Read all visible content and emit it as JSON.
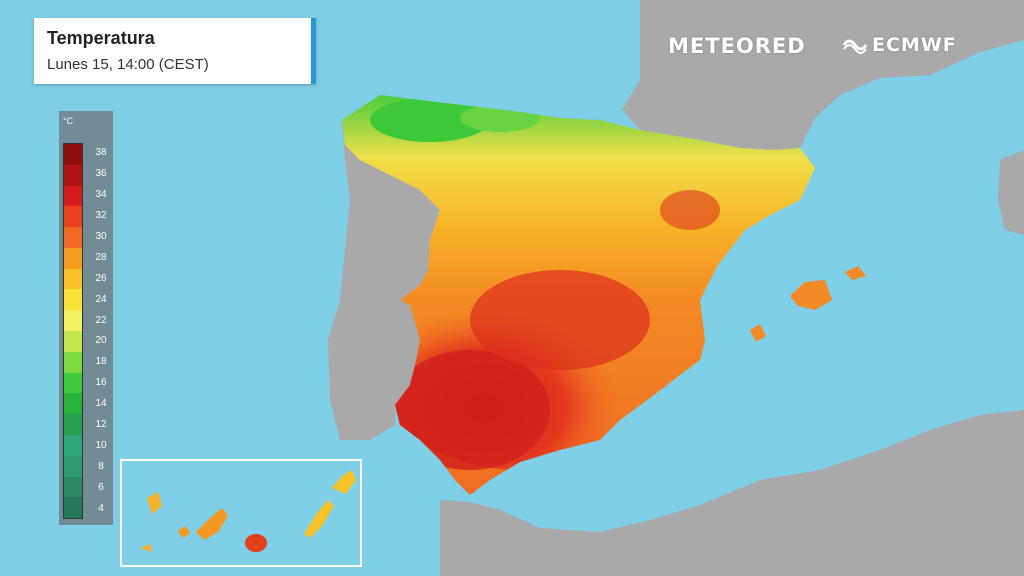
{
  "header": {
    "title": "Temperatura",
    "subtitle": "Lunes 15, 14:00 (CEST)"
  },
  "brands": {
    "meteored": "METEORED",
    "ecmwf": "ECMWF"
  },
  "legend": {
    "unit": "°C",
    "ticks": [
      "38",
      "36",
      "34",
      "32",
      "30",
      "28",
      "26",
      "24",
      "22",
      "20",
      "18",
      "16",
      "14",
      "12",
      "10",
      "8",
      "6",
      "4"
    ],
    "colors": [
      "#8e0e0e",
      "#b01414",
      "#d41c1c",
      "#e8401c",
      "#f06a22",
      "#f69a22",
      "#f8c028",
      "#fbe03a",
      "#f6f060",
      "#c6e650",
      "#7ed840",
      "#3ecb3a",
      "#28b43a",
      "#27a050",
      "#2fa67a",
      "#2f9a70",
      "#2b8a64",
      "#24785a"
    ]
  },
  "colors": {
    "sea": "#7fcfe6",
    "land_outside": "#a9a9a9",
    "inset_border": "#ffffff"
  }
}
